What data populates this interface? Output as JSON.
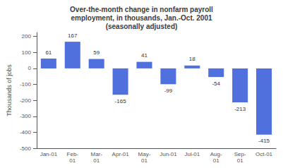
{
  "chart_data": {
    "type": "bar",
    "title": "Over-the-month change in nonfarm payroll\nemployment, in thousands, Jan.-Oct. 2001\n(seasonally adjusted)",
    "ylabel": "Thousands of jobs",
    "categories": [
      "Jan-01",
      "Feb-\n01",
      "Mar-\n01",
      "Apr-01",
      "May-\n01",
      "Jun-01",
      "Jul-01",
      "Aug-\n01",
      "Sep-\n01",
      "Oct-01"
    ],
    "values": [
      61,
      167,
      59,
      -165,
      41,
      -99,
      18,
      -54,
      -213,
      -415
    ],
    "ylim": [
      -500,
      225
    ],
    "yticks": [
      -500,
      -400,
      -300,
      -200,
      -100,
      0,
      100,
      200
    ],
    "grid": false,
    "data_labels": true
  }
}
